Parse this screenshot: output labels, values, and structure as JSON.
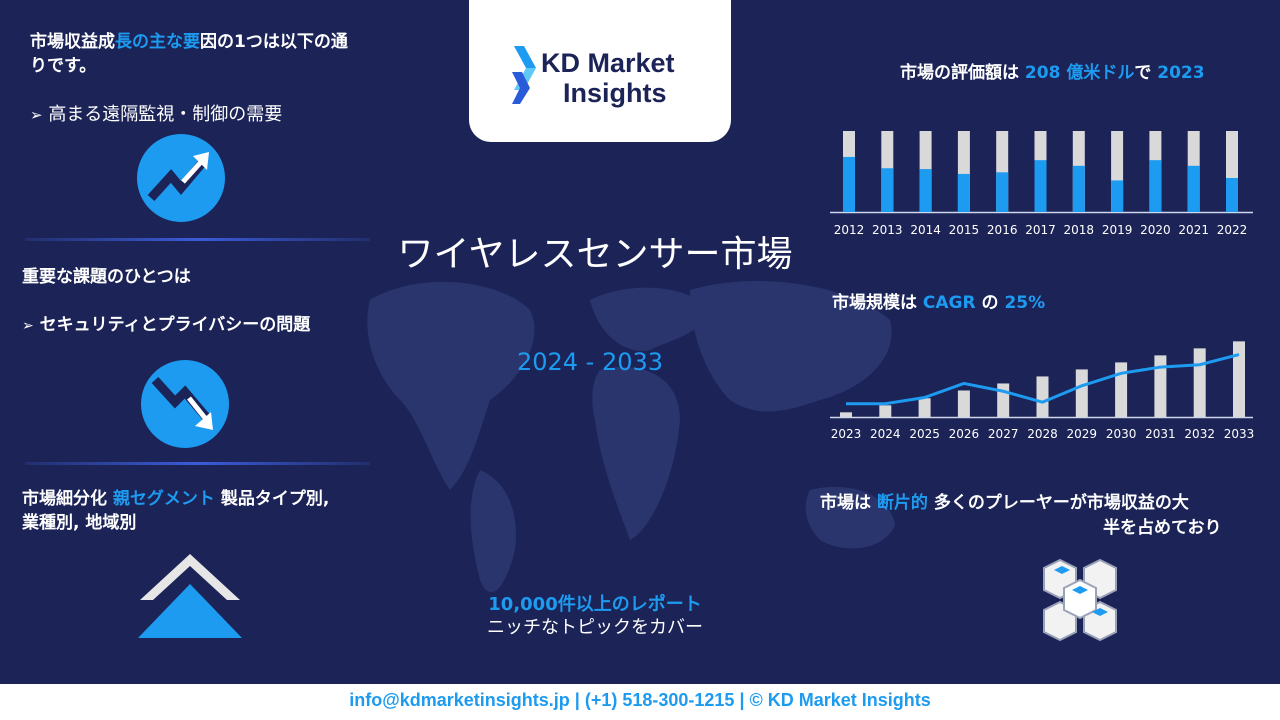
{
  "logo": {
    "line1": "KD Market",
    "line2": "Insights"
  },
  "left": {
    "revenue_heading_part1": "市場収益成",
    "revenue_heading_part2": "長の主な要",
    "revenue_heading_part3": "因の1つは以下の通",
    "revenue_heading_part4": "りです。",
    "revenue_bullet": "高まる遠隔監視・制御の需要",
    "challenge_heading": "重要な課題のひとつは",
    "challenge_bullet": "セキュリティとプライバシーの問題",
    "segment_heading_part1": "市場細分化",
    "segment_heading_part2": "親セグメント",
    "segment_heading_part3": "製品タイプ別,",
    "segment_heading_part4": "業種別, 地域別"
  },
  "center": {
    "title": "ワイヤレスセンサー市場",
    "years": "2024 - 2033",
    "report_line1": "10,000件以上のレポート",
    "report_line2": "ニッチなトピックをカバー"
  },
  "right": {
    "valuation_part1": "市場の評価額は",
    "valuation_value": "208 億米ドル",
    "valuation_part2": "で",
    "valuation_year": "2023",
    "cagr_part1": "市場規模は",
    "cagr_label": "CAGR",
    "cagr_part2": "の",
    "cagr_value": "25%",
    "frag_part1": "市場は",
    "frag_highlight": "断片的",
    "frag_part2": "多くのプレーヤーが市場収益の大",
    "frag_part3": "半を占めており"
  },
  "footer": {
    "text": "info@kdmarketinsights.jp  |  (+1) 518-300-1215   |  © KD Market Insights"
  },
  "colors": {
    "accent": "#1d9bf0",
    "background": "#1b2357",
    "bar_grey": "#d9d9d9"
  },
  "chart_data": [
    {
      "type": "bar",
      "categories": [
        "2012",
        "2013",
        "2014",
        "2015",
        "2016",
        "2017",
        "2018",
        "2019",
        "2020",
        "2021",
        "2022"
      ],
      "series": [
        {
          "values": [
            0.68,
            0.54,
            0.53,
            0.47,
            0.49,
            0.64,
            0.57,
            0.39,
            0.64,
            0.57,
            0.42
          ]
        }
      ],
      "ylim": [
        0,
        1
      ]
    },
    {
      "type": "bar",
      "categories": [
        "2023",
        "2024",
        "2025",
        "2026",
        "2027",
        "2028",
        "2029",
        "2030",
        "2031",
        "2032",
        "2033"
      ],
      "bar_values": [
        6,
        15,
        24,
        34,
        43,
        52,
        61,
        70,
        79,
        88,
        97
      ],
      "line_values": [
        17,
        17,
        25,
        43,
        33,
        19,
        40,
        56,
        64,
        67,
        80
      ],
      "ylim": [
        0,
        100
      ]
    }
  ]
}
